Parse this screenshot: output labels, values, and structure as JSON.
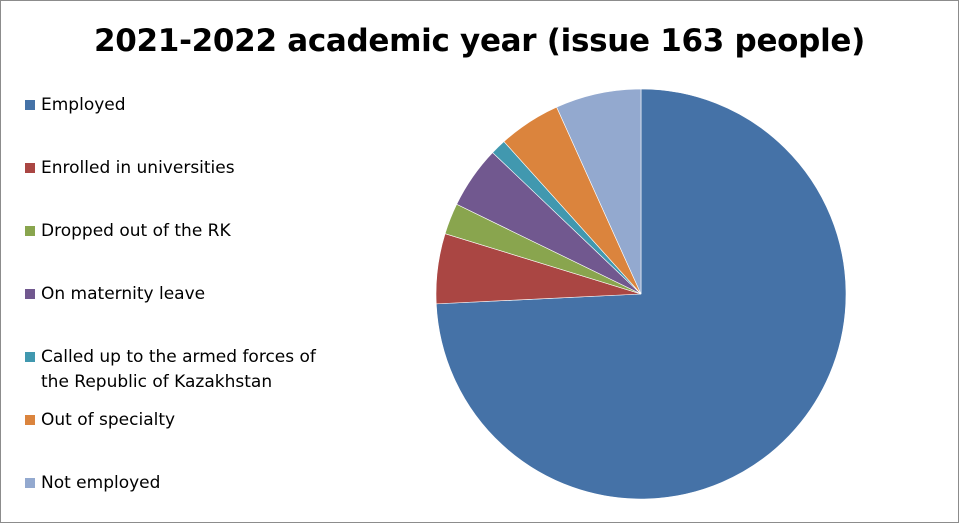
{
  "chart_data": {
    "type": "pie",
    "title": "2021-2022 academic year (issue 163 people)",
    "categories": [
      "Employed",
      "Enrolled in universities",
      "Dropped out of the RK",
      "On maternity leave",
      "Called up to the armed forces of the Republic of Kazakhstan",
      "Out of specialty",
      "Not employed"
    ],
    "legend_lines": [
      "Employed",
      "Enrolled in universities",
      "Dropped out of the RK",
      "On maternity leave",
      "Called up to the armed forces of\nthe Republic of Kazakhstan",
      "Out of specialty",
      "Not employed"
    ],
    "values": [
      121,
      9,
      4,
      8,
      2,
      8,
      11
    ],
    "colors": [
      "#4572a7",
      "#aa4643",
      "#89a54e",
      "#71588f",
      "#4198af",
      "#db843d",
      "#93a9cf"
    ],
    "legend_position": "left",
    "start_angle": "12 o'clock",
    "direction": "clockwise"
  }
}
